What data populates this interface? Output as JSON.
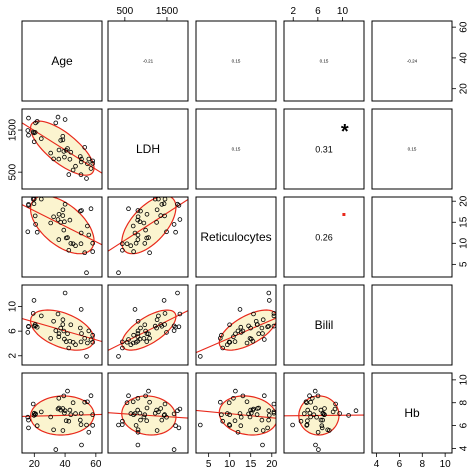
{
  "chart_data": {
    "type": "scatter-matrix",
    "variables": [
      {
        "name": "Age",
        "ticks": [
          "20",
          "40",
          "60"
        ],
        "range": [
          12,
          64
        ]
      },
      {
        "name": "LDH",
        "ticks": [
          "500",
          "1500"
        ],
        "range": [
          100,
          2000
        ]
      },
      {
        "name": "Reticulocytes",
        "ticks": [
          "5",
          "10",
          "15",
          "20"
        ],
        "range": [
          2,
          21
        ]
      },
      {
        "name": "Bilil",
        "ticks": [
          "2",
          "6",
          "10"
        ],
        "range": [
          0.5,
          13.5
        ]
      },
      {
        "name": "Hb",
        "ticks": [
          "4",
          "6",
          "8",
          "10"
        ],
        "range": [
          3.6,
          10.6
        ]
      }
    ],
    "correlations": [
      {
        "row": 0,
        "col": 1,
        "text": "-0.21"
      },
      {
        "row": 0,
        "col": 2,
        "text": "0.15"
      },
      {
        "row": 0,
        "col": 3,
        "text": "0.15"
      },
      {
        "row": 0,
        "col": 4,
        "text": "-0.24"
      },
      {
        "row": 1,
        "col": 2,
        "text": "0.15"
      },
      {
        "row": 1,
        "col": 3,
        "text": "0.31",
        "big": true,
        "stars": "*"
      },
      {
        "row": 1,
        "col": 4,
        "text": "0.15"
      },
      {
        "row": 2,
        "col": 3,
        "text": "0.26",
        "big": true,
        "stars": "."
      },
      {
        "row": 2,
        "col": 4,
        "text": ""
      },
      {
        "row": 3,
        "col": 4,
        "text": ""
      }
    ],
    "point_color": "#000000",
    "ellipse_color": "#e8291c",
    "ellipse_fill": "#fbf4cf",
    "line_color": "#e8291c",
    "star_color": "#e8291c"
  }
}
